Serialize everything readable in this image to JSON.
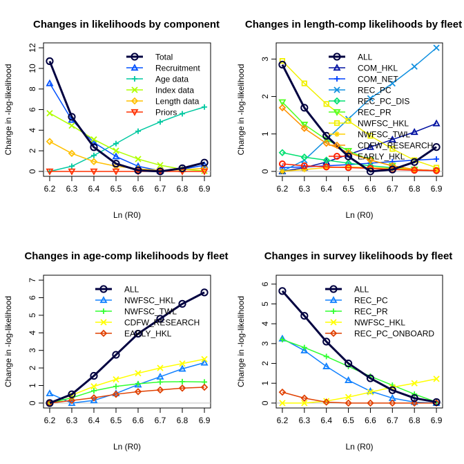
{
  "chart_data": [
    {
      "type": "line",
      "title": "Changes in likelihoods by component",
      "xlabel": "Ln (R0)",
      "ylabel": "Change in -log-likelihood",
      "x": [
        6.2,
        6.3,
        6.4,
        6.5,
        6.6,
        6.7,
        6.8,
        6.9
      ],
      "xlim": [
        6.2,
        6.9
      ],
      "ylim": [
        0,
        12
      ],
      "yticks": [
        0,
        2,
        4,
        6,
        8,
        10,
        12
      ],
      "legend_position": "top-right",
      "series": [
        {
          "name": "Total",
          "color": "#000040",
          "marker": "circle",
          "width": 3,
          "values": [
            10.7,
            5.3,
            2.35,
            0.75,
            0.1,
            0.0,
            0.3,
            0.85
          ]
        },
        {
          "name": "Recruitment",
          "color": "#0050ff",
          "marker": "triangle",
          "width": 1.5,
          "values": [
            8.55,
            5.0,
            2.8,
            1.45,
            0.5,
            0.05,
            0.2,
            0.6
          ]
        },
        {
          "name": "Age data",
          "color": "#00c8a0",
          "marker": "plus",
          "width": 1.5,
          "values": [
            0.0,
            0.5,
            1.55,
            2.7,
            3.9,
            4.8,
            5.6,
            6.25
          ]
        },
        {
          "name": "Index data",
          "color": "#b0ff00",
          "marker": "cross",
          "width": 1.5,
          "values": [
            5.65,
            4.45,
            3.1,
            2.0,
            1.2,
            0.6,
            0.2,
            0.05
          ]
        },
        {
          "name": "Length data",
          "color": "#ffc000",
          "marker": "diamond",
          "width": 1.5,
          "values": [
            2.9,
            1.75,
            0.95,
            0.5,
            0.25,
            0.1,
            0.15,
            0.3
          ]
        },
        {
          "name": "Priors",
          "color": "#ff3000",
          "marker": "triangle-down",
          "width": 1.5,
          "values": [
            0.0,
            0.0,
            0.0,
            0.0,
            0.0,
            0.0,
            0.0,
            0.0
          ]
        }
      ]
    },
    {
      "type": "line",
      "title": "Changes in length-comp likelihoods by fleet",
      "xlabel": "Ln (R0)",
      "ylabel": "Change in -log-likelihood",
      "x": [
        6.2,
        6.3,
        6.4,
        6.5,
        6.6,
        6.7,
        6.8,
        6.9
      ],
      "xlim": [
        6.2,
        6.9
      ],
      "ylim": [
        0,
        3.3
      ],
      "yticks": [
        0,
        1,
        2,
        3
      ],
      "legend_position": "top-center",
      "series": [
        {
          "name": "ALL",
          "color": "#000040",
          "marker": "circle",
          "width": 3,
          "values": [
            2.85,
            1.7,
            0.95,
            0.4,
            0.0,
            0.05,
            0.25,
            0.65
          ]
        },
        {
          "name": "COM_HKL",
          "color": "#0010a0",
          "marker": "triangle",
          "width": 1.5,
          "values": [
            0.0,
            0.1,
            0.25,
            0.45,
            0.65,
            0.85,
            1.05,
            1.28
          ]
        },
        {
          "name": "COM_NET",
          "color": "#0040ff",
          "marker": "plus",
          "width": 1.5,
          "values": [
            0.1,
            0.12,
            0.15,
            0.18,
            0.22,
            0.26,
            0.3,
            0.33
          ]
        },
        {
          "name": "REC_PC",
          "color": "#1090e0",
          "marker": "cross",
          "width": 1.5,
          "values": [
            0.0,
            0.3,
            0.85,
            1.4,
            1.95,
            2.35,
            2.8,
            3.3
          ]
        },
        {
          "name": "REC_PC_DIS",
          "color": "#00e070",
          "marker": "diamond",
          "width": 1.5,
          "values": [
            0.5,
            0.38,
            0.3,
            0.22,
            0.15,
            0.1,
            0.05,
            0.02
          ]
        },
        {
          "name": "REC_PR",
          "color": "#50ff20",
          "marker": "triangle-down",
          "width": 1.5,
          "values": [
            1.85,
            1.25,
            0.85,
            0.55,
            0.3,
            0.15,
            0.05,
            0.02
          ]
        },
        {
          "name": "NWFSC_HKL",
          "color": "#f0f000",
          "marker": "square",
          "width": 1.5,
          "values": [
            2.95,
            2.35,
            1.8,
            1.35,
            0.95,
            0.6,
            0.3,
            0.1
          ]
        },
        {
          "name": "NWFSC_TWL",
          "color": "#ffd000",
          "marker": "star",
          "width": 1.5,
          "values": [
            0.0,
            0.05,
            0.1,
            0.12,
            0.1,
            0.08,
            0.05,
            0.02
          ]
        },
        {
          "name": "CDFW_RESEARCH",
          "color": "#ff9000",
          "marker": "diamond",
          "width": 1.5,
          "values": [
            1.7,
            1.15,
            0.75,
            0.5,
            0.3,
            0.15,
            0.05,
            0.02
          ]
        },
        {
          "name": "EARLY_HKL",
          "color": "#ff2000",
          "marker": "circle",
          "width": 1.5,
          "values": [
            0.2,
            0.15,
            0.12,
            0.1,
            0.08,
            0.05,
            0.03,
            0.02
          ]
        }
      ]
    },
    {
      "type": "line",
      "title": "Changes in age-comp likelihoods by fleet",
      "xlabel": "Ln (R0)",
      "ylabel": "Change in -log-likelihood",
      "x": [
        6.2,
        6.3,
        6.4,
        6.5,
        6.6,
        6.7,
        6.8,
        6.9
      ],
      "xlim": [
        6.2,
        6.9
      ],
      "ylim": [
        0,
        7
      ],
      "yticks": [
        0,
        1,
        2,
        3,
        4,
        5,
        6,
        7
      ],
      "legend_position": "top-center",
      "series": [
        {
          "name": "ALL",
          "color": "#000040",
          "marker": "circle",
          "width": 3,
          "values": [
            0.0,
            0.5,
            1.55,
            2.75,
            3.95,
            4.8,
            5.65,
            6.3
          ]
        },
        {
          "name": "NWFSC_HKL",
          "color": "#1080ff",
          "marker": "triangle",
          "width": 1.5,
          "values": [
            0.55,
            0.0,
            0.15,
            0.55,
            1.05,
            1.5,
            1.95,
            2.3
          ]
        },
        {
          "name": "NWFSC_TWL",
          "color": "#30ff30",
          "marker": "plus",
          "width": 1.5,
          "values": [
            0.0,
            0.3,
            0.7,
            0.95,
            1.1,
            1.2,
            1.22,
            1.2
          ]
        },
        {
          "name": "CDFW_RESEARCH",
          "color": "#ffff00",
          "marker": "cross",
          "width": 1.5,
          "values": [
            0.0,
            0.45,
            0.95,
            1.35,
            1.7,
            2.0,
            2.25,
            2.5
          ]
        },
        {
          "name": "EARLY_HKL",
          "color": "#e04000",
          "marker": "diamond",
          "width": 1.5,
          "values": [
            0.0,
            0.15,
            0.3,
            0.5,
            0.65,
            0.75,
            0.85,
            0.9
          ]
        }
      ]
    },
    {
      "type": "line",
      "title": "Changes in survey likelihoods by fleet",
      "xlabel": "Ln (R0)",
      "ylabel": "Change in -log-likelihood",
      "x": [
        6.2,
        6.3,
        6.4,
        6.5,
        6.6,
        6.7,
        6.8,
        6.9
      ],
      "xlim": [
        6.2,
        6.9
      ],
      "ylim": [
        0,
        6.2
      ],
      "yticks": [
        0,
        1,
        2,
        3,
        4,
        5,
        6
      ],
      "legend_position": "top-center",
      "series": [
        {
          "name": "ALL",
          "color": "#000040",
          "marker": "circle",
          "width": 3,
          "values": [
            5.65,
            4.4,
            3.1,
            2.0,
            1.25,
            0.65,
            0.25,
            0.05
          ]
        },
        {
          "name": "REC_PC",
          "color": "#1080ff",
          "marker": "triangle",
          "width": 1.5,
          "values": [
            3.25,
            2.65,
            1.85,
            1.15,
            0.6,
            0.25,
            0.05,
            0.0
          ]
        },
        {
          "name": "REC_PR",
          "color": "#30ff30",
          "marker": "plus",
          "width": 1.5,
          "values": [
            3.2,
            2.8,
            2.35,
            1.85,
            1.35,
            0.9,
            0.45,
            0.05
          ]
        },
        {
          "name": "NWFSC_HKL",
          "color": "#ffff00",
          "marker": "cross",
          "width": 1.5,
          "values": [
            0.0,
            0.0,
            0.1,
            0.3,
            0.55,
            0.8,
            1.0,
            1.22
          ]
        },
        {
          "name": "REC_PC_ONBOARD",
          "color": "#e04000",
          "marker": "diamond",
          "width": 1.5,
          "values": [
            0.55,
            0.25,
            0.05,
            0.0,
            0.0,
            0.0,
            0.0,
            0.0
          ]
        }
      ]
    }
  ]
}
